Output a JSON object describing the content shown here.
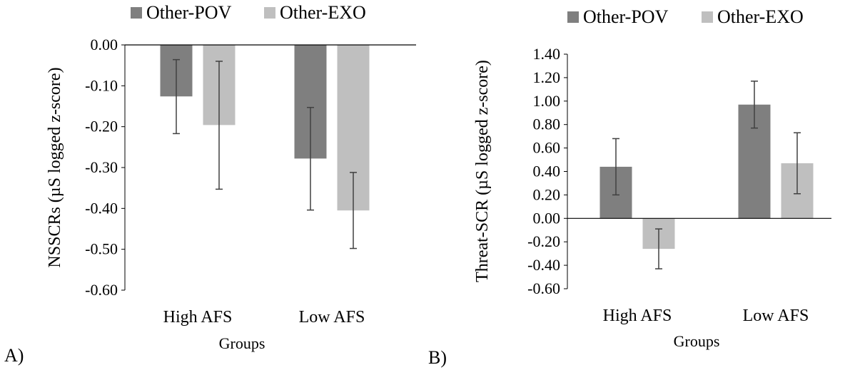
{
  "colors": {
    "series_pov": "#7f7f7f",
    "series_exo": "#bfbfbf",
    "error_bar": "#404040",
    "axis": "#000000"
  },
  "chart_data": [
    {
      "type": "bar",
      "panel_label": "A)",
      "title": "",
      "xlabel": "Groups",
      "ylabel": "NSSCRs (µS logged z-score)",
      "categories": [
        "High AFS",
        "Low AFS"
      ],
      "series": [
        {
          "name": "Other-POV",
          "values": [
            -0.126,
            -0.278
          ],
          "error_low": [
            -0.217,
            -0.404
          ],
          "error_high": [
            -0.036,
            -0.153
          ]
        },
        {
          "name": "Other-EXO",
          "values": [
            -0.196,
            -0.405
          ],
          "error_low": [
            -0.353,
            -0.498
          ],
          "error_high": [
            -0.04,
            -0.312
          ]
        }
      ],
      "ylim": [
        -0.6,
        0.0
      ],
      "yticks": [
        0.0,
        -0.1,
        -0.2,
        -0.3,
        -0.4,
        -0.5,
        -0.6
      ],
      "ytick_labels": [
        "0.00",
        "-0.10",
        "-0.20",
        "-0.30",
        "-0.40",
        "-0.50",
        "-0.60"
      ],
      "grid": false,
      "legend": "top"
    },
    {
      "type": "bar",
      "panel_label": "B)",
      "title": "",
      "xlabel": "Groups",
      "ylabel": "Threat-SCR (µS logged z-score)",
      "categories": [
        "High AFS",
        "Low AFS"
      ],
      "series": [
        {
          "name": "Other-POV",
          "values": [
            0.44,
            0.97
          ],
          "error_low": [
            0.2,
            0.77
          ],
          "error_high": [
            0.68,
            1.17
          ]
        },
        {
          "name": "Other-EXO",
          "values": [
            -0.26,
            0.47
          ],
          "error_low": [
            -0.43,
            0.21
          ],
          "error_high": [
            -0.09,
            0.73
          ]
        }
      ],
      "ylim": [
        -0.6,
        1.4
      ],
      "yticks": [
        1.4,
        1.2,
        1.0,
        0.8,
        0.6,
        0.4,
        0.2,
        0.0,
        -0.2,
        -0.4,
        -0.6
      ],
      "ytick_labels": [
        "1.40",
        "1.20",
        "1.00",
        "0.80",
        "0.60",
        "0.40",
        "0.20",
        "0.00",
        "-0.20",
        "-0.40",
        "-0.60"
      ],
      "grid": false,
      "legend": "top"
    }
  ]
}
